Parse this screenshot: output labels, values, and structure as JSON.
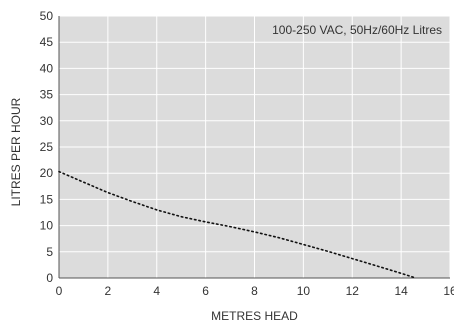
{
  "chart_data": {
    "type": "line",
    "title": "",
    "annotation": "100-250 VAC, 50Hz/60Hz Litres",
    "xlabel": "METRES HEAD",
    "ylabel": "LITRES PER HOUR",
    "xlim": [
      0,
      16
    ],
    "ylim": [
      0,
      50
    ],
    "xticks": [
      0,
      2,
      4,
      6,
      8,
      10,
      12,
      14,
      16
    ],
    "yticks": [
      0,
      5,
      10,
      15,
      20,
      25,
      30,
      35,
      40,
      45,
      50
    ],
    "grid": true,
    "series": [
      {
        "x": [
          0,
          1,
          2,
          3,
          4,
          5,
          6,
          7,
          8,
          9,
          10,
          11,
          12,
          13,
          14,
          14.6
        ],
        "y": [
          20.3,
          18.3,
          16.3,
          14.6,
          13.0,
          11.7,
          10.7,
          9.8,
          8.8,
          7.7,
          6.4,
          5.1,
          3.7,
          2.3,
          0.9,
          0.0
        ]
      }
    ]
  },
  "colors": {
    "plot_background": "#dcdcdc",
    "grid": "#ffffff",
    "line": "#111111",
    "text": "#333333"
  }
}
